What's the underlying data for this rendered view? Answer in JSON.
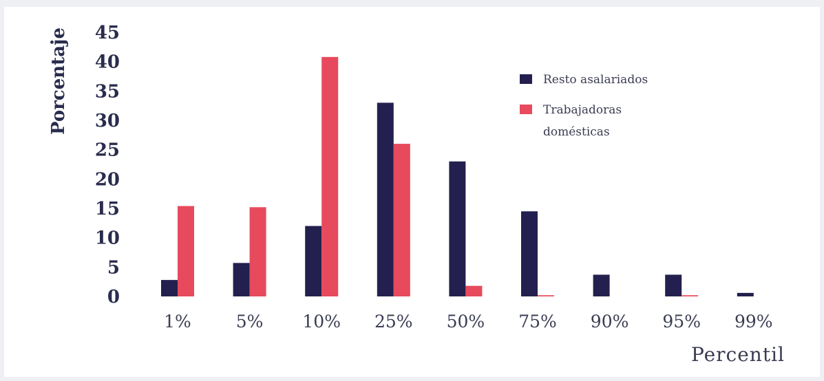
{
  "chart_data": {
    "type": "bar",
    "categories": [
      "1%",
      "5%",
      "10%",
      "25%",
      "50%",
      "75%",
      "90%",
      "95%",
      "99%"
    ],
    "series": [
      {
        "name": "Resto asalariados",
        "color": "#23204f",
        "values": [
          2.8,
          5.7,
          12.0,
          33.0,
          23.0,
          14.5,
          3.7,
          3.7,
          0.6
        ]
      },
      {
        "name": "Trabajadoras domésticas",
        "color": "#e64a5c",
        "values": [
          15.4,
          15.2,
          40.8,
          26.0,
          1.8,
          0.2,
          0.0,
          0.2,
          0.0
        ]
      }
    ],
    "legend_lines": [
      [
        "Resto asalariados"
      ],
      [
        "Trabajadoras",
        "domésticas"
      ]
    ],
    "xlabel": "Percentil",
    "ylabel": "Porcentaje",
    "ylim": [
      0,
      45
    ],
    "yticks": [
      0,
      5,
      10,
      15,
      20,
      25,
      30,
      35,
      40,
      45
    ],
    "grid": false,
    "legend_position": "top-right"
  }
}
